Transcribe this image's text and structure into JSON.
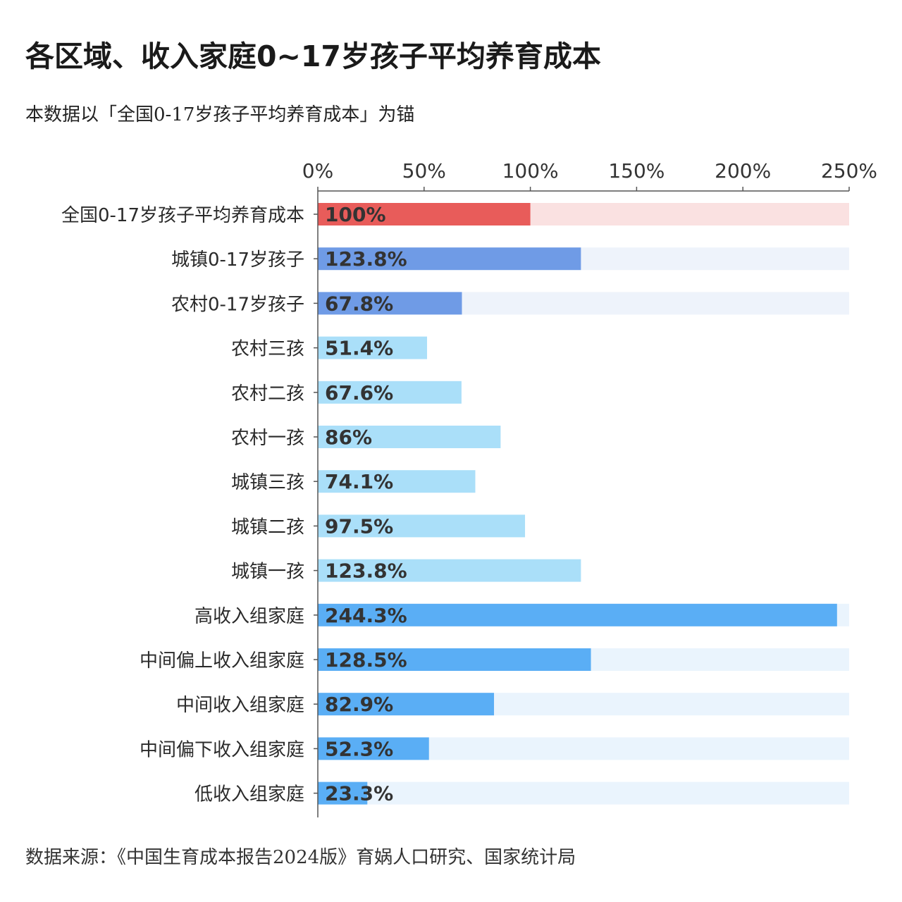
{
  "title": "各区域、收入家庭0~17岁孩子平均养育成本",
  "subtitle": "本数据以「全国0-17岁孩子平均养育成本」为锚",
  "source": "数据来源：《中国生育成本报告2024版》育娲人口研究、国家统计局",
  "chart_data": {
    "type": "bar",
    "orientation": "horizontal",
    "title": "各区域、收入家庭0~17岁孩子平均养育成本",
    "xlim": [
      0,
      250
    ],
    "xticks": [
      0,
      50,
      100,
      150,
      200,
      250
    ],
    "xtick_labels": [
      "0%",
      "50%",
      "100%",
      "150%",
      "200%",
      "250%"
    ],
    "axis_position": "top",
    "categories": [
      "全国0-17岁孩子平均养育成本",
      "城镇0-17岁孩子",
      "农村0-17岁孩子",
      "农村三孩",
      "农村二孩",
      "农村一孩",
      "城镇三孩",
      "城镇二孩",
      "城镇一孩",
      "高收入组家庭",
      "中间偏上收入组家庭",
      "中间收入组家庭",
      "中间偏下收入组家庭",
      "低收入组家庭"
    ],
    "values": [
      100,
      123.8,
      67.8,
      51.4,
      67.6,
      86,
      74.1,
      97.5,
      123.8,
      244.3,
      128.5,
      82.9,
      52.3,
      23.3
    ],
    "value_labels": [
      "100%",
      "123.8%",
      "67.8%",
      "51.4%",
      "67.6%",
      "86%",
      "74.1%",
      "97.5%",
      "123.8%",
      "244.3%",
      "128.5%",
      "82.9%",
      "52.3%",
      "23.3%"
    ],
    "bar_colors": [
      "#e85c5a",
      "#6f9be6",
      "#6f9be6",
      "#aadff9",
      "#aadff9",
      "#aadff9",
      "#aadff9",
      "#aadff9",
      "#aadff9",
      "#5aaef5",
      "#5aaef5",
      "#5aaef5",
      "#5aaef5",
      "#5aaef5"
    ],
    "track_colors": [
      "#fae1e1",
      "#eef3fb",
      "#eef3fb",
      "",
      "",
      "",
      "",
      "",
      "",
      "#eaf4fd",
      "#eaf4fd",
      "#eaf4fd",
      "#eaf4fd",
      "#eaf4fd"
    ]
  }
}
